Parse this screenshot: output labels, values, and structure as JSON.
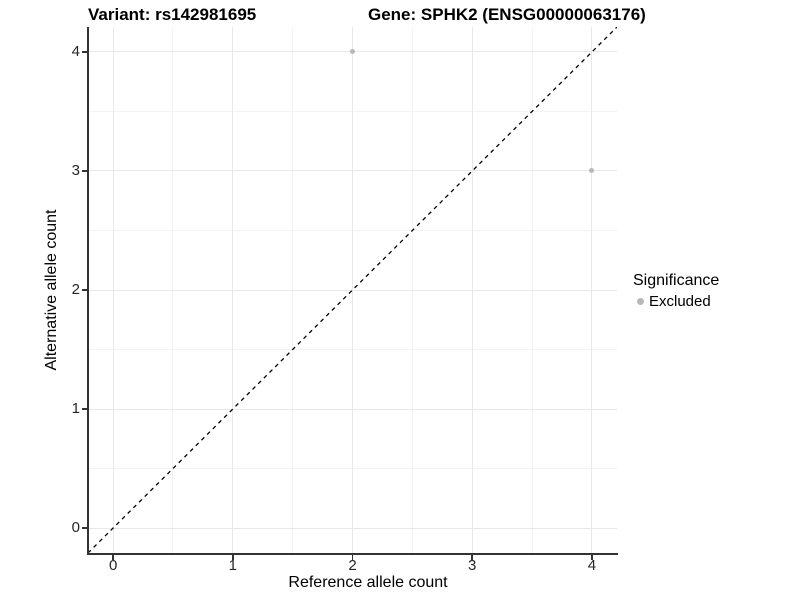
{
  "titles": {
    "left": "Variant: rs142981695",
    "right": "Gene: SPHK2 (ENSG00000063176)"
  },
  "chart_data": {
    "type": "scatter",
    "xlabel": "Reference allele count",
    "ylabel": "Alternative allele count",
    "xlim": [
      -0.21,
      4.21
    ],
    "ylim": [
      -0.21,
      4.21
    ],
    "xticks": [
      0,
      1,
      2,
      3,
      4
    ],
    "yticks": [
      0,
      1,
      2,
      3,
      4
    ],
    "xminor": [
      0.5,
      1.5,
      2.5,
      3.5
    ],
    "yminor": [
      0.5,
      1.5,
      2.5,
      3.5
    ],
    "grid": "major and minor, light gray, on white background",
    "reference_line": {
      "equation": "y = x",
      "style": "dashed",
      "color": "#000000"
    },
    "series": [
      {
        "name": "Excluded",
        "color": "#b8b8b8",
        "points": [
          [
            2,
            4
          ],
          [
            4,
            3
          ]
        ]
      }
    ],
    "legend": {
      "title": "Significance",
      "position": "right",
      "entries": [
        {
          "label": "Excluded",
          "color": "#b8b8b8"
        }
      ]
    }
  },
  "colors": {
    "background": "#ffffff",
    "axis_line": "#333333",
    "grid_major": "#e8e8e8",
    "grid_minor": "#f3f3f3",
    "tick_label": "#262626",
    "point": "#b8b8b8",
    "dashed_line": "#000000"
  }
}
